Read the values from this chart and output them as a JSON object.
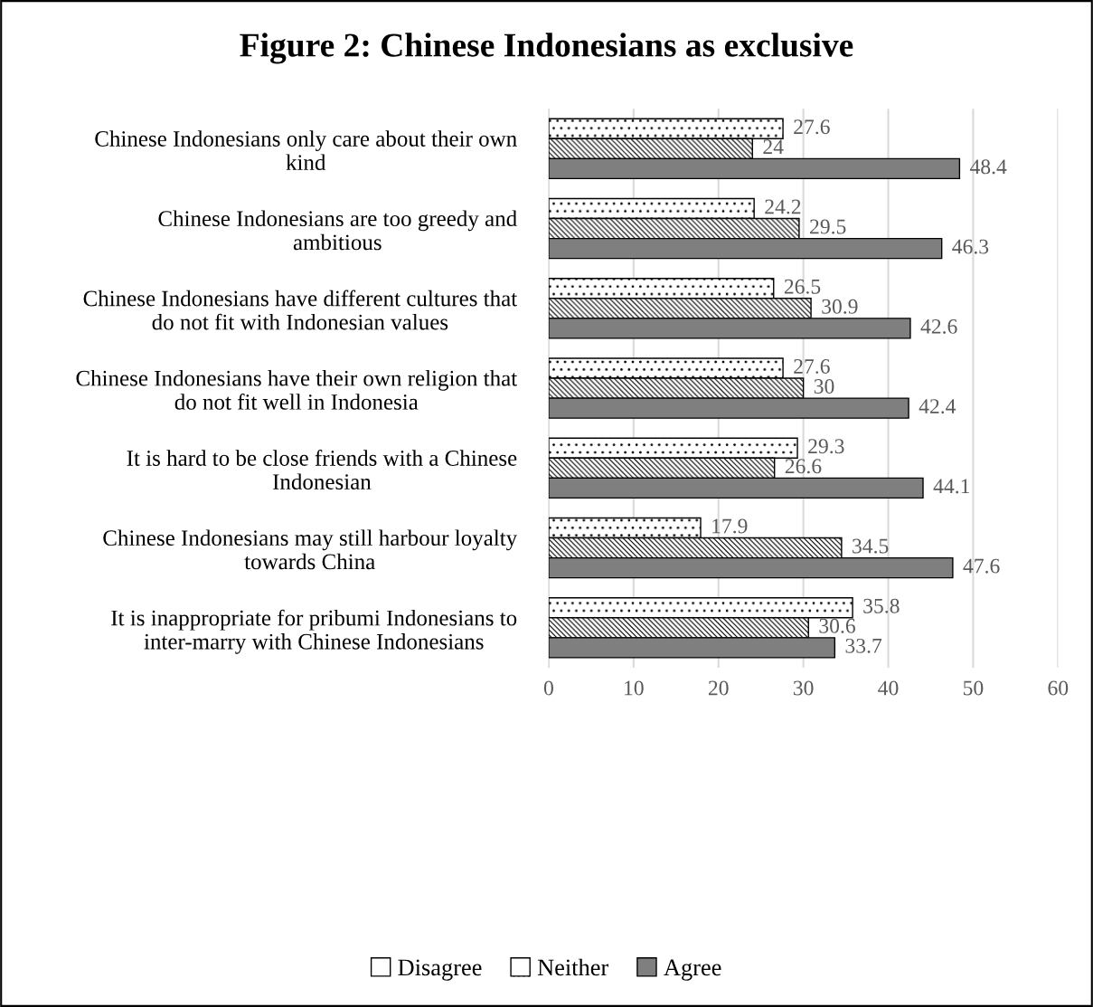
{
  "chart_data": {
    "type": "bar",
    "orientation": "horizontal",
    "title": "Figure 2: Chinese Indonesians as exclusive",
    "categories": [
      "Chinese Indonesians only care about their own\nkind",
      "Chinese Indonesians are too greedy and\nambitious",
      "Chinese Indonesians have different cultures that\ndo not fit with Indonesian values",
      "Chinese Indonesians have their own religion that\ndo not fit well in Indonesia",
      "It is hard to be close friends with a Chinese\nIndonesian",
      "Chinese Indonesians may still harbour loyalty\ntowards China",
      "It is inappropriate for pribumi Indonesians to\ninter-marry with Chinese Indonesians"
    ],
    "series": [
      {
        "name": "Disagree",
        "color": "#ffffff",
        "values": [
          27.6,
          24.2,
          26.5,
          27.6,
          29.3,
          17.9,
          35.8
        ]
      },
      {
        "name": "Neither",
        "color": "#ffffff",
        "values": [
          24,
          29.5,
          30.9,
          30,
          26.6,
          34.5,
          30.6
        ]
      },
      {
        "name": "Agree",
        "color": "#7f7f7f",
        "values": [
          48.4,
          46.3,
          42.6,
          42.4,
          44.1,
          47.6,
          33.7
        ]
      }
    ],
    "xlim": [
      0,
      60
    ],
    "xticks": [
      0,
      10,
      20,
      30,
      40,
      50,
      60
    ],
    "grid": "x",
    "legend": "bottom",
    "data_labels": true
  }
}
